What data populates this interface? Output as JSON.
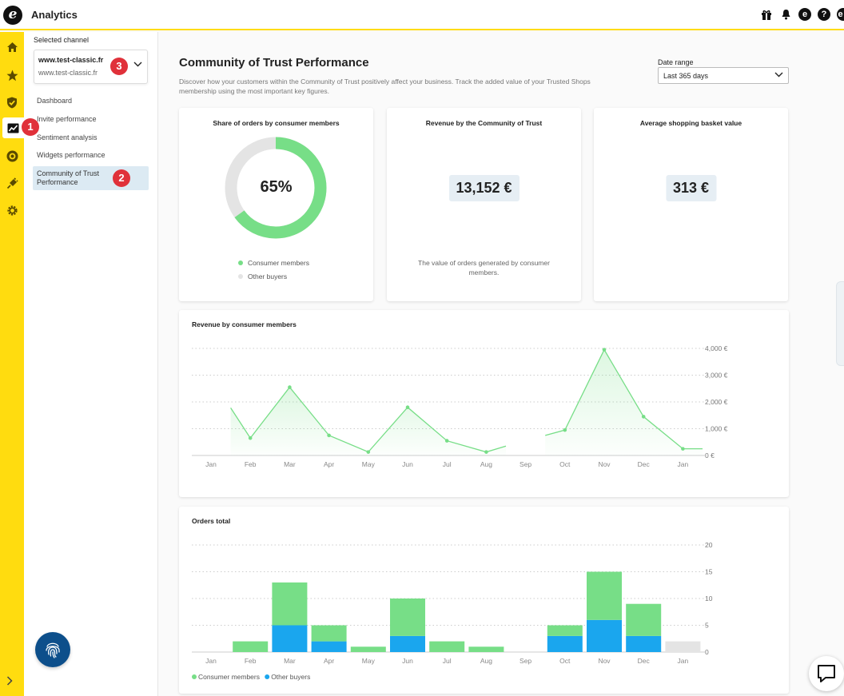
{
  "app": {
    "title": "Analytics"
  },
  "top_icons": [
    "gift-icon",
    "bell-icon",
    "trusted-coin-icon",
    "help-icon",
    "account-icon"
  ],
  "rail": {
    "items": [
      "home-icon",
      "star-icon",
      "shield-check-icon",
      "analytics-icon",
      "coin-icon",
      "plug-icon",
      "gear-icon"
    ],
    "active": "analytics-icon"
  },
  "badges": [
    "1",
    "2",
    "3"
  ],
  "sidebar": {
    "selected_label": "Selected channel",
    "channel_name": "www.test-classic.fr",
    "channel_url": "www.test-classic.fr",
    "items": [
      {
        "label": "Dashboard"
      },
      {
        "label": "Invite performance"
      },
      {
        "label": "Sentiment analysis"
      },
      {
        "label": "Widgets performance"
      },
      {
        "label": "Community of Trust Performance"
      }
    ]
  },
  "page": {
    "title": "Community of Trust Performance",
    "description": "Discover how your customers within the Community of Trust positively affect your business. Track the added value of your Trusted Shops membership using the most important key figures.",
    "date_range_label": "Date range",
    "date_range_value": "Last 365 days"
  },
  "kpi": {
    "share": {
      "title": "Share of orders by consumer members",
      "value": "65%",
      "fraction": 0.65,
      "legend": [
        "Consumer members",
        "Other buyers"
      ]
    },
    "revenue": {
      "title": "Revenue by the Community of Trust",
      "value": "13,152 €",
      "note": "The value of orders generated by consumer members."
    },
    "basket": {
      "title": "Average shopping basket value",
      "value": "313 €"
    }
  },
  "colors": {
    "green": "#77de87",
    "blue": "#1aa6ee",
    "grey": "#e4e4e4",
    "yellow": "#ffdc0f",
    "navy": "#0d4f8b",
    "badge_red": "#e0313a"
  },
  "chart_data": [
    {
      "type": "line",
      "title": "Revenue by consumer members",
      "categories": [
        "Jan",
        "Feb",
        "Mar",
        "Apr",
        "May",
        "Jun",
        "Jul",
        "Aug",
        "Sep",
        "Oct",
        "Nov",
        "Dec",
        "Jan"
      ],
      "y_ticks": [
        "0 €",
        "1,000 €",
        "2,000 €",
        "3,000 €",
        "4,000 €"
      ],
      "ylim": [
        0,
        4000
      ],
      "segments": [
        {
          "points": [
            [
              0.5,
              1780
            ],
            [
              1,
              650
            ],
            [
              2,
              2550
            ],
            [
              3,
              750
            ],
            [
              4,
              130
            ],
            [
              5,
              1800
            ],
            [
              6,
              550
            ],
            [
              7,
              130
            ],
            [
              7.5,
              350
            ]
          ]
        },
        {
          "points": [
            [
              8.5,
              750
            ],
            [
              9,
              950
            ],
            [
              10,
              3950
            ],
            [
              11,
              1450
            ],
            [
              12,
              250
            ],
            [
              12.5,
              250
            ]
          ]
        }
      ],
      "markers": [
        1,
        2,
        3,
        4,
        5,
        6,
        7,
        9,
        10,
        11,
        12
      ],
      "grid": true
    },
    {
      "type": "bar",
      "title": "Orders total",
      "categories": [
        "Jan",
        "Feb",
        "Mar",
        "Apr",
        "May",
        "Jun",
        "Jul",
        "Aug",
        "Sep",
        "Oct",
        "Nov",
        "Dec",
        "Jan"
      ],
      "y_ticks": [
        "0",
        "5",
        "10",
        "15",
        "20"
      ],
      "ylim": [
        0,
        20
      ],
      "stacked": true,
      "series": [
        {
          "name": "Other buyers",
          "values": [
            0,
            0,
            5,
            2,
            0,
            3,
            0,
            0,
            0,
            3,
            6,
            3,
            0
          ]
        },
        {
          "name": "Consumer members",
          "values": [
            0,
            2,
            8,
            3,
            1,
            7,
            2,
            1,
            0,
            2,
            9,
            6,
            0
          ]
        }
      ],
      "placeholder_values": [
        0,
        0,
        0,
        0,
        0,
        0,
        0,
        0,
        0,
        0,
        0,
        0,
        2
      ],
      "grid": true
    }
  ]
}
